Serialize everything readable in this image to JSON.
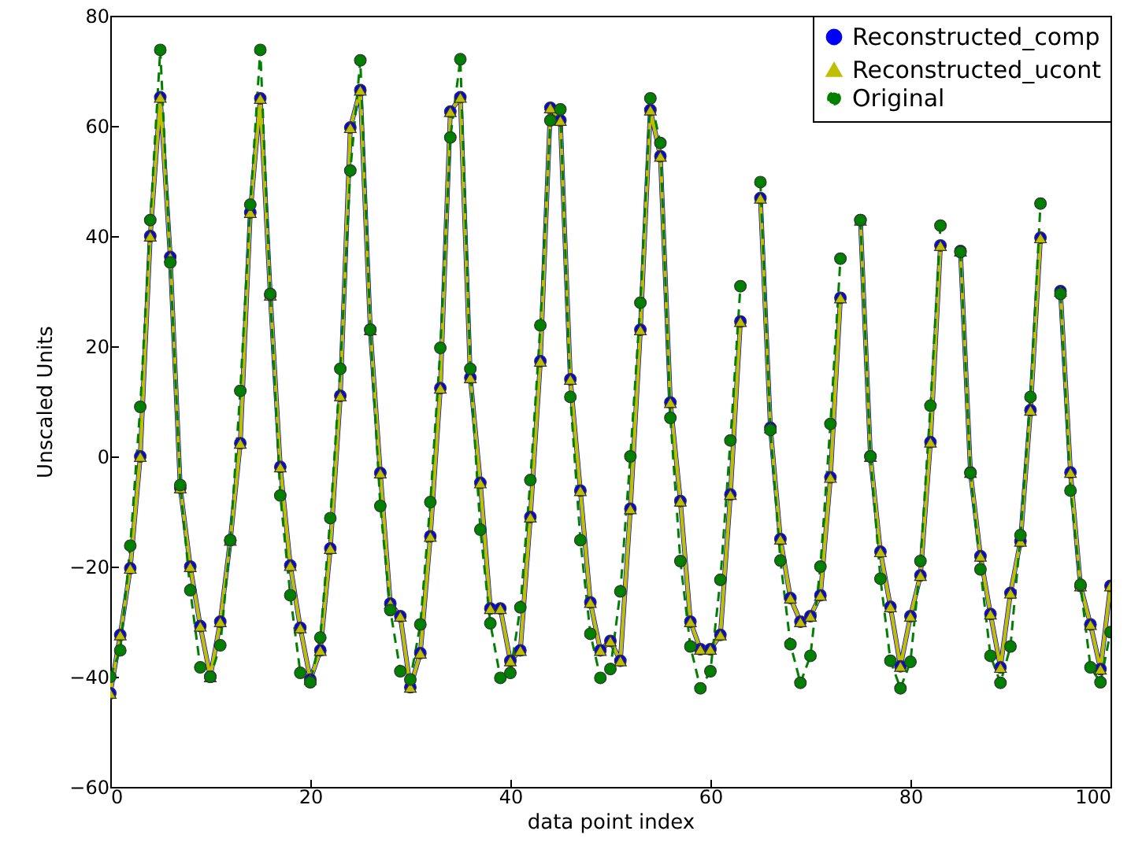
{
  "chart_data": {
    "type": "line",
    "xlabel": "data point index",
    "ylabel": "Unscaled Units",
    "x": [
      0,
      1,
      2,
      3,
      4,
      5,
      6,
      7,
      8,
      9,
      10,
      11,
      12,
      13,
      14,
      15,
      16,
      17,
      18,
      19,
      20,
      21,
      22,
      23,
      24,
      25,
      26,
      27,
      28,
      29,
      30,
      31,
      32,
      33,
      34,
      35,
      36,
      37,
      38,
      39,
      40,
      41,
      42,
      43,
      44,
      45,
      46,
      47,
      48,
      49,
      50,
      51,
      52,
      53,
      54,
      55,
      56,
      57,
      58,
      59,
      60,
      61,
      62,
      63,
      64,
      65,
      66,
      67,
      68,
      69,
      70,
      71,
      72,
      73,
      74,
      75,
      76,
      77,
      78,
      79,
      80,
      81,
      82,
      83,
      84,
      85,
      86,
      87,
      88,
      89,
      90,
      91,
      92,
      93,
      94,
      95,
      96,
      97,
      98,
      99,
      100
    ],
    "series": [
      {
        "name": "Reconstructed_comp",
        "color": "#0000ff",
        "marker": "circle",
        "line_style": "solid",
        "values": [
          -43,
          -32.4,
          -20.3,
          0,
          40,
          65.2,
          36.2,
          -5.7,
          -20,
          -30.8,
          -40,
          -30,
          -15.2,
          2.4,
          44.3,
          65,
          29.3,
          -1.9,
          -19.8,
          -31.1,
          -40.5,
          -35.2,
          -16.7,
          11,
          59.7,
          66.5,
          23,
          -3,
          -26.7,
          -29,
          -41.9,
          -35.7,
          -14.5,
          12.4,
          62.6,
          65.2,
          14.3,
          -4.8,
          -27.6,
          -27.6,
          -37.1,
          -35.2,
          -11,
          17.3,
          63.3,
          61,
          14,
          -6.2,
          -26.5,
          -35.2,
          -33.5,
          -37.1,
          -9.5,
          23,
          62.9,
          54.5,
          9.8,
          -8.1,
          -30,
          -35,
          -35,
          -32.4,
          -6.9,
          24.5,
          null,
          46.9,
          5.2,
          -15,
          -25.7,
          -30,
          -29,
          -25.2,
          -3.8,
          28.8,
          null,
          42.9,
          0,
          -17.3,
          -27.3,
          -38.1,
          -29,
          -21.6,
          2.6,
          38.3,
          null,
          37.3,
          -2.9,
          -18.1,
          -28.6,
          -38.3,
          -24.8,
          -15.4,
          8.4,
          39.7,
          null,
          30,
          -2.9,
          -23.5,
          -30.5,
          -38.6,
          -23.5
        ]
      },
      {
        "name": "Reconstructed_ucont",
        "color": "#bfbf00",
        "marker": "triangle",
        "line_style": "solid",
        "values": [
          -43,
          -32.4,
          -20.3,
          0,
          40,
          65.2,
          36.2,
          -5.7,
          -20,
          -30.8,
          -40,
          -30,
          -15.2,
          2.4,
          44.3,
          65,
          29.3,
          -1.9,
          -19.8,
          -31.1,
          -40.5,
          -35.2,
          -16.7,
          11,
          59.7,
          66.5,
          23,
          -3,
          -26.7,
          -29,
          -41.9,
          -35.7,
          -14.5,
          12.4,
          62.6,
          65.2,
          14.3,
          -4.8,
          -27.6,
          -27.6,
          -37.1,
          -35.2,
          -11,
          17.3,
          63.3,
          61,
          14,
          -6.2,
          -26.5,
          -35.2,
          -33.5,
          -37.1,
          -9.5,
          23,
          62.9,
          54.5,
          9.8,
          -8.1,
          -30,
          -35,
          -35,
          -32.4,
          -6.9,
          24.5,
          null,
          46.9,
          5.2,
          -15,
          -25.7,
          -30,
          -29,
          -25.2,
          -3.8,
          28.8,
          null,
          42.9,
          0,
          -17.3,
          -27.3,
          -38.1,
          -29,
          -21.6,
          2.6,
          38.3,
          null,
          37.3,
          -2.9,
          -18.1,
          -28.6,
          -38.3,
          -24.8,
          -15.4,
          8.4,
          39.7,
          null,
          30,
          -2.9,
          -23.5,
          -30.5,
          -38.6,
          -23.5
        ]
      },
      {
        "name": " Original",
        "color": "#008000",
        "marker": "circle",
        "line_style": "dashed",
        "values": [
          -40,
          -35.2,
          -16.2,
          9,
          42.9,
          73.8,
          35.2,
          -5.2,
          -24.3,
          -38.3,
          -40,
          -34.3,
          -15.2,
          11.9,
          45.7,
          73.8,
          29.5,
          -7.1,
          -25.2,
          -39.3,
          -41,
          -32.9,
          -11.2,
          15.9,
          51.9,
          71.9,
          23,
          -9,
          -27.9,
          -39,
          -40.5,
          -30.5,
          -8.3,
          19.7,
          57.9,
          72.1,
          15.9,
          -13.3,
          -30.3,
          -40.2,
          -39.3,
          -27.4,
          -4.3,
          23.8,
          61,
          63,
          10.8,
          -15.2,
          -32.2,
          -40.2,
          -38.6,
          -24.5,
          0,
          27.9,
          65,
          56.9,
          7,
          -19,
          -34.5,
          -42.1,
          -39,
          -22.4,
          2.9,
          30.9,
          null,
          49.8,
          4.8,
          -18.9,
          -34.1,
          -41.1,
          -36.2,
          -20,
          5.9,
          35.9,
          null,
          42.9,
          0,
          -22.2,
          -37.1,
          -42.1,
          -37.3,
          -19,
          9.2,
          41.9,
          null,
          37.1,
          -3,
          -20.5,
          -36.2,
          -41.1,
          -34.5,
          -14.3,
          10.8,
          45.9,
          null,
          29.5,
          -6.2,
          -23.3,
          -38.3,
          -41,
          -31.9
        ]
      }
    ],
    "xlim": [
      0,
      100
    ],
    "xticks": [
      0,
      20,
      40,
      60,
      80,
      100
    ],
    "ylim": [
      -60,
      80
    ],
    "yticks": [
      -60,
      -40,
      -20,
      0,
      20,
      40,
      60,
      80
    ],
    "grid": false,
    "legend": "top right"
  }
}
